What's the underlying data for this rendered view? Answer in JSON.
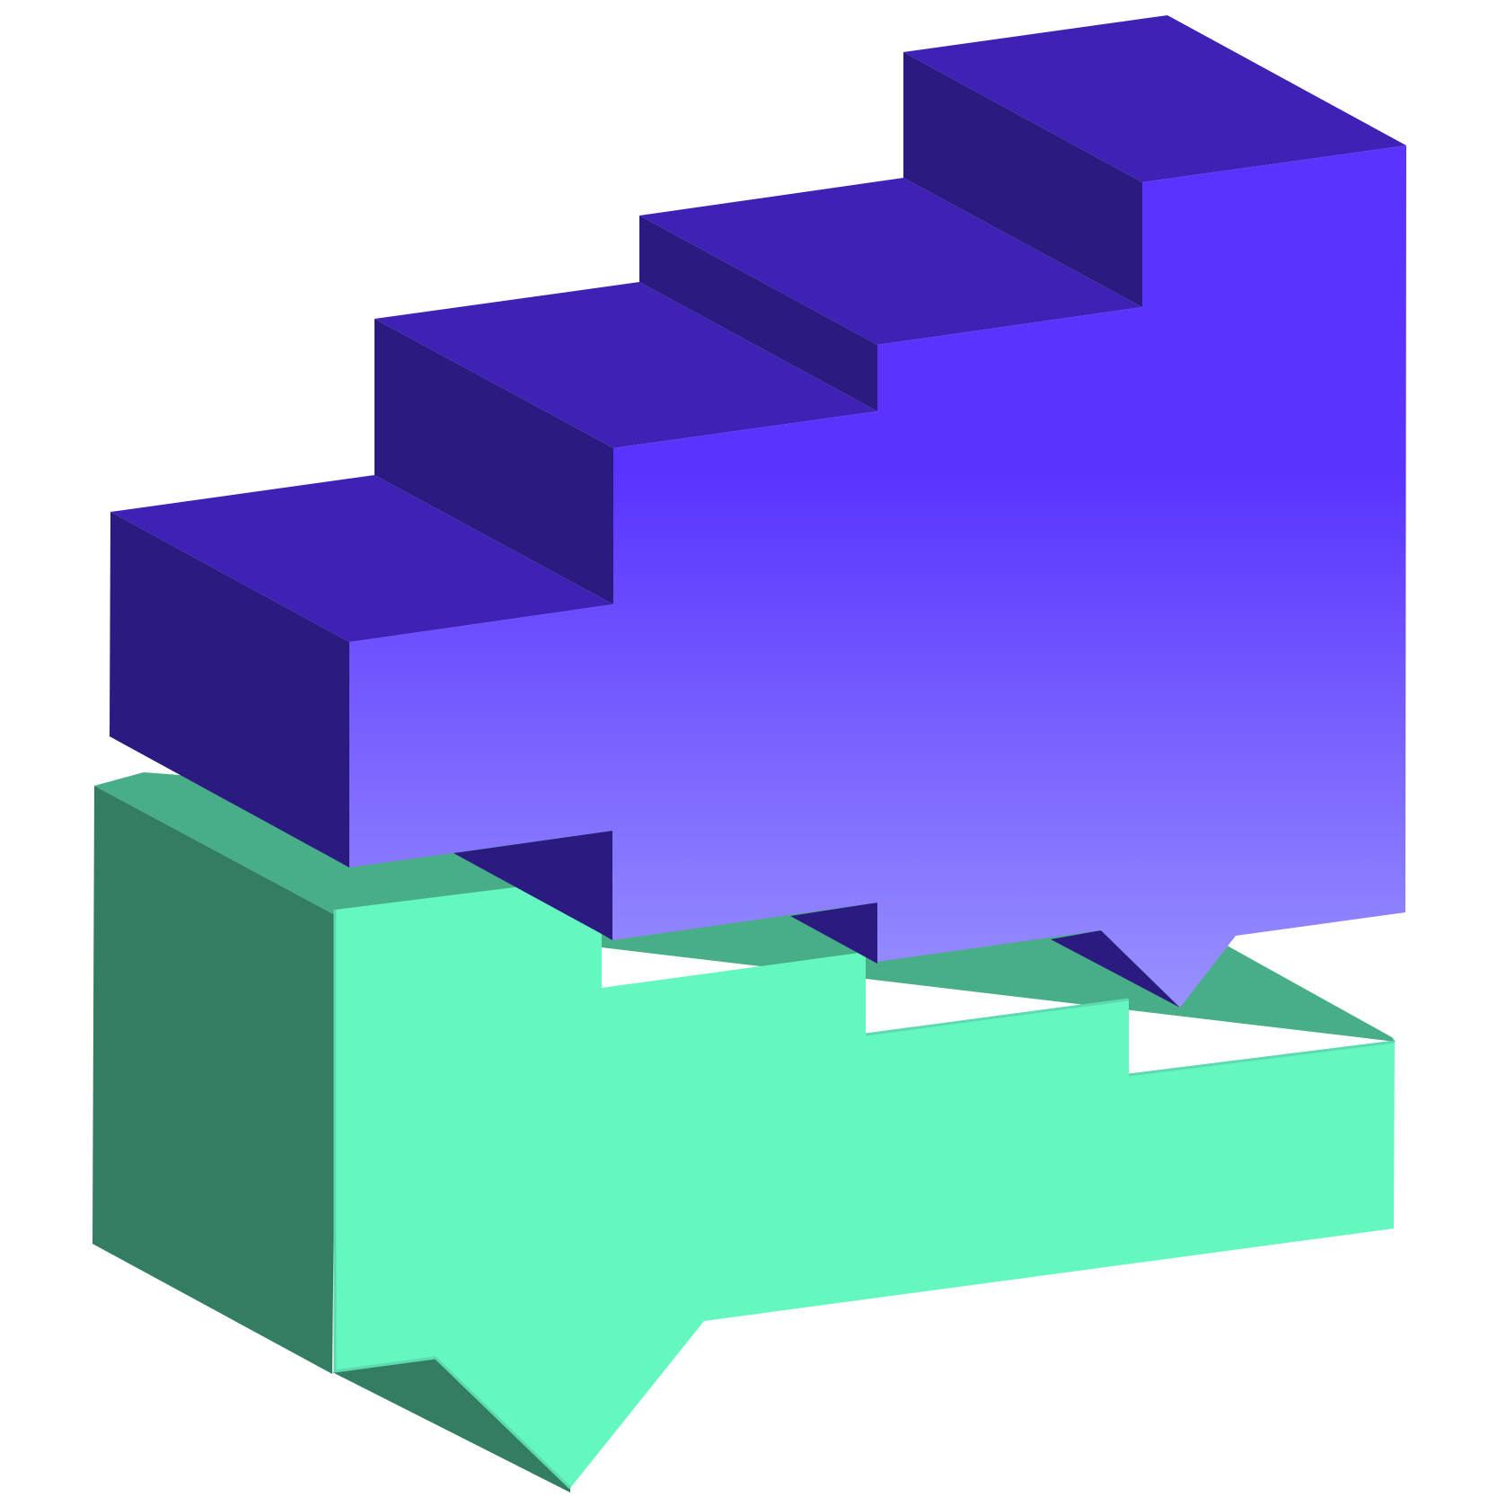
{
  "illustration": {
    "name": "stacked-3d-speech-bubbles",
    "icons": [
      "staircase-speech-bubble-icon",
      "speech-bubble-icon"
    ],
    "colors": {
      "background": "#ffffff",
      "purple_top": "#3f22b5",
      "purple_side": "#2b1a80",
      "purple_front_top": "#5a33ff",
      "purple_front_bottom": "#9891ff",
      "green_top": "#48ae87",
      "green_side": "#337d62",
      "green_front": "#65f7c0",
      "green_edge": "#5ddab0"
    }
  }
}
